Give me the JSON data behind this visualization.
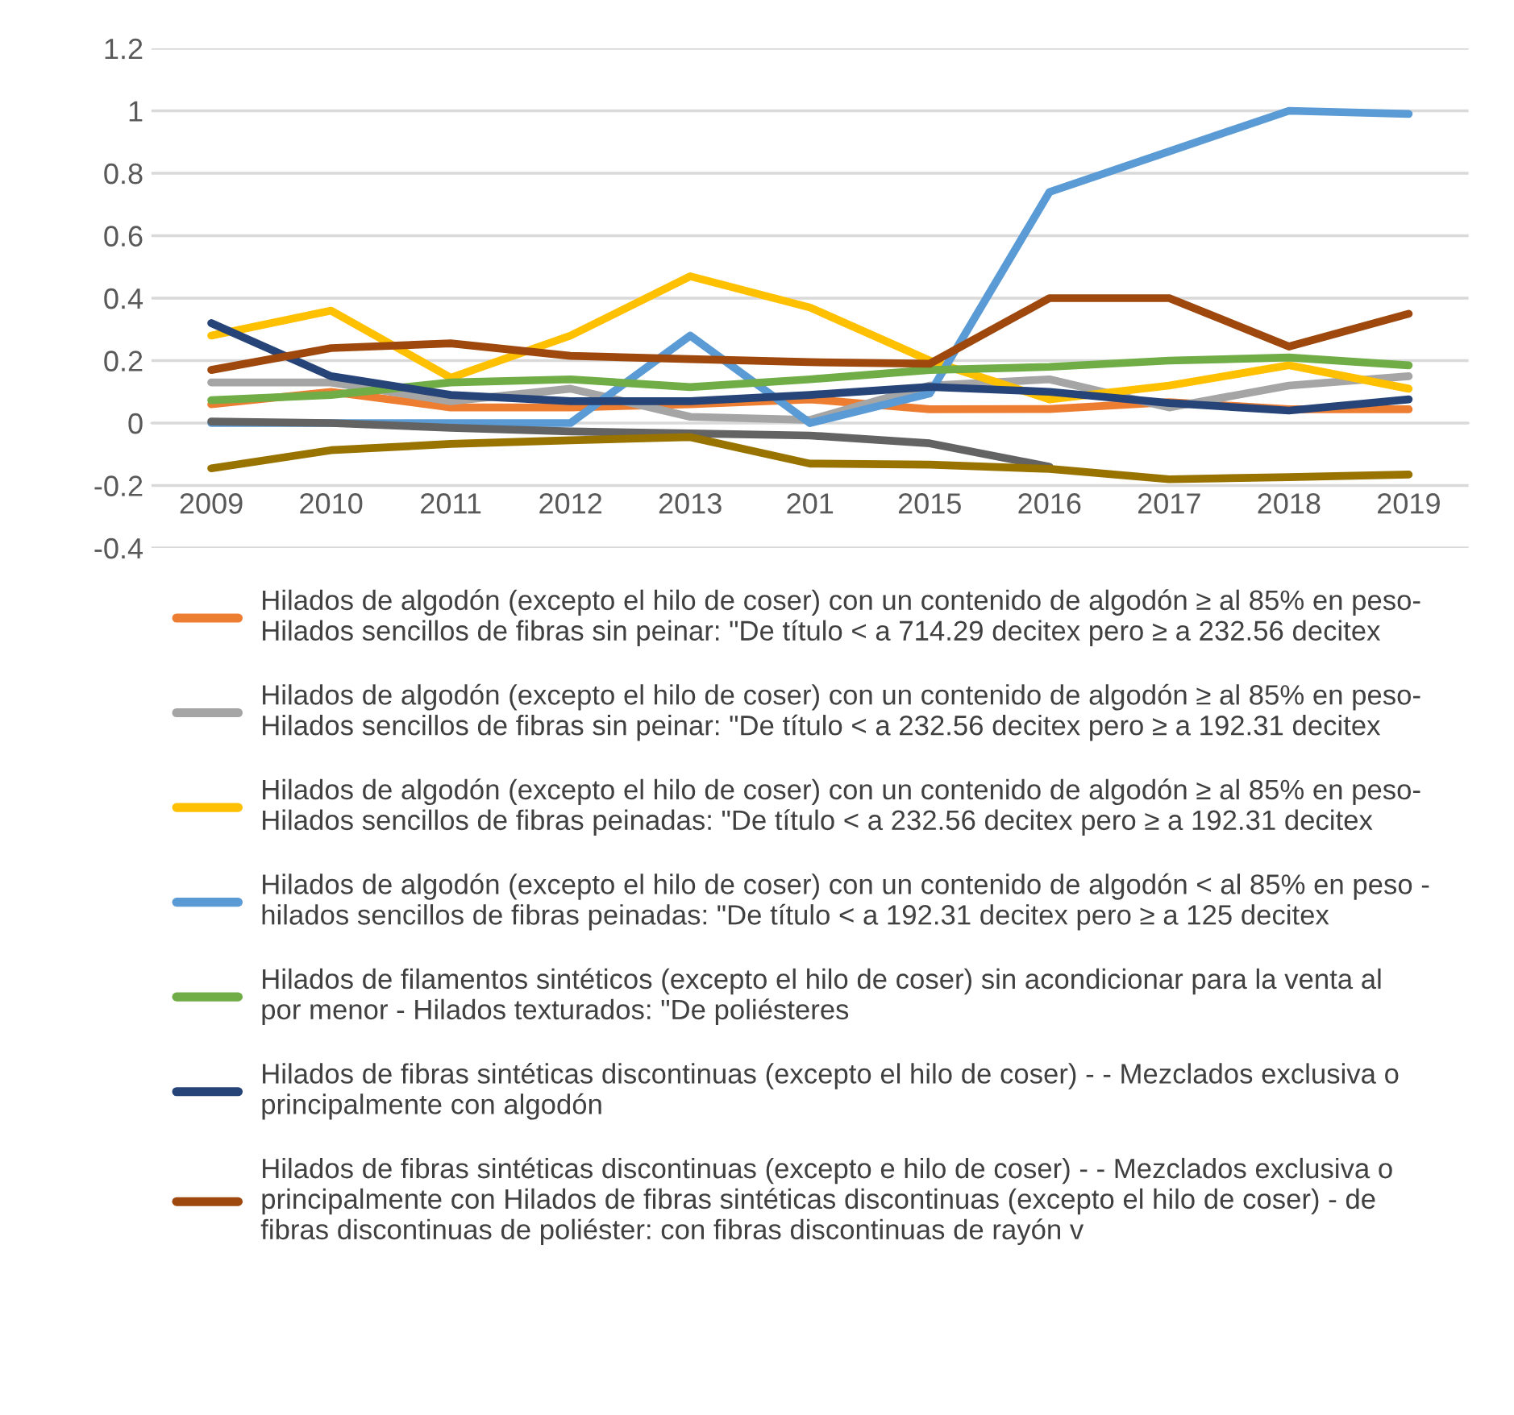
{
  "chart_data": {
    "type": "line",
    "categories": [
      "2009",
      "2010",
      "2011",
      "2012",
      "2013",
      "201",
      "2015",
      "2016",
      "2017",
      "2018",
      "2019"
    ],
    "ylim": [
      -0.4,
      1.2
    ],
    "yticks": [
      -0.4,
      -0.2,
      0,
      0.2,
      0.4,
      0.6,
      0.8,
      1,
      1.2
    ],
    "grid": "y",
    "legend": "bottom",
    "series": [
      {
        "name": "Hilados de algodón (excepto el hilo de coser) con un contenido de algodón ≥ al 85% en peso-\nHilados sencillos de fibras sin peinar: \"De título < a 714.29 decitex pero ≥ a 232.56 decitex",
        "color": "#ed7d31",
        "values": [
          0.06,
          0.1,
          0.05,
          0.05,
          0.06,
          0.076,
          0.044,
          0.045,
          0.067,
          0.044,
          0.044
        ]
      },
      {
        "name": "Hilados de algodón (excepto el hilo de coser) con un contenido de algodón ≥ al 85% en peso-\nHilados sencillos de fibras sin peinar: \"De título < a 232.56 decitex pero ≥ a 192.31 decitex",
        "color": "#a5a5a5",
        "values": [
          0.13,
          0.13,
          0.07,
          0.11,
          0.02,
          0.01,
          0.12,
          0.14,
          0.05,
          0.12,
          0.15
        ]
      },
      {
        "name": "Hilados de algodón (excepto el hilo de coser) con un contenido de algodón ≥ al 85% en peso-\nHilados sencillos de fibras peinadas: \"De título < a 232.56 decitex pero ≥ a 192.31 decitex",
        "color": "#ffc000",
        "values": [
          0.28,
          0.36,
          0.145,
          0.28,
          0.47,
          0.37,
          0.2,
          0.076,
          0.12,
          0.185,
          0.11
        ]
      },
      {
        "name": "Hilados de algodón (excepto el hilo de coser) con un contenido de algodón < al 85% en peso -\nhilados sencillos de fibras peinadas: \"De título < a 192.31 decitex pero ≥ a 125 decitex",
        "color": "#5b9bd5",
        "values": [
          0.0,
          0.0,
          0.0,
          0.0,
          0.28,
          0.0,
          0.095,
          0.74,
          0.87,
          1.0,
          0.99
        ]
      },
      {
        "name": "Hilados de filamentos sintéticos (excepto el hilo de coser) sin acondicionar para la venta al\npor menor - Hilados texturados: \"De poliésteres",
        "color": "#70ad47",
        "values": [
          0.073,
          0.09,
          0.13,
          0.14,
          0.115,
          0.14,
          0.17,
          0.18,
          0.2,
          0.21,
          0.185
        ]
      },
      {
        "name": "Hilados de fibras sintéticas discontinuas (excepto el hilo de coser) - - Mezclados exclusiva o\nprincipalmente con algodón",
        "color": "#264478",
        "values": [
          0.32,
          0.15,
          0.09,
          0.07,
          0.07,
          0.09,
          0.116,
          0.1,
          0.064,
          0.04,
          0.076
        ]
      },
      {
        "name": "Hilados de fibras sintéticas discontinuas (excepto e hilo de coser) - - Mezclados exclusiva o\nprincipalmente con Hilados de fibras sintéticas discontinuas (excepto el hilo de coser) - de\nfibras discontinuas de poliéster: con fibras discontinuas de rayón v",
        "color": "#9e480e",
        "values": [
          0.17,
          0.24,
          0.255,
          0.215,
          0.205,
          0.195,
          0.19,
          0.4,
          0.4,
          0.245,
          0.35
        ]
      },
      {
        "color": "#636363",
        "values": [
          0.005,
          0.0,
          -0.015,
          -0.027,
          -0.033,
          -0.04,
          -0.065,
          -0.14,
          null,
          null,
          null
        ]
      },
      {
        "color": "#997300",
        "values": [
          -0.145,
          -0.087,
          -0.067,
          -0.055,
          -0.045,
          -0.13,
          -0.133,
          -0.147,
          -0.18,
          -0.173,
          -0.165
        ]
      }
    ]
  }
}
